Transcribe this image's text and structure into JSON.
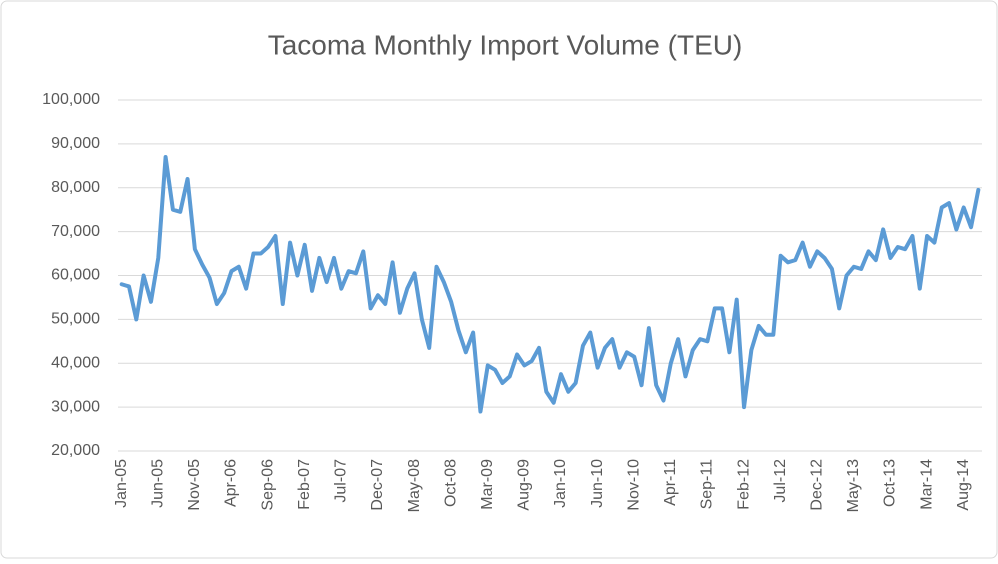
{
  "chart_data": {
    "type": "line",
    "title": "Tacoma Monthly Import Volume (TEU)",
    "categories": [
      "Jan-05",
      null,
      null,
      null,
      null,
      "Jun-05",
      null,
      null,
      null,
      null,
      "Nov-05",
      null,
      null,
      null,
      null,
      "Apr-06",
      null,
      null,
      null,
      null,
      "Sep-06",
      null,
      null,
      null,
      null,
      "Feb-07",
      null,
      null,
      null,
      null,
      "Jul-07",
      null,
      null,
      null,
      null,
      "Dec-07",
      null,
      null,
      null,
      null,
      "May-08",
      null,
      null,
      null,
      null,
      "Oct-08",
      null,
      null,
      null,
      null,
      "Mar-09",
      null,
      null,
      null,
      null,
      "Aug-09",
      null,
      null,
      null,
      null,
      "Jan-10",
      null,
      null,
      null,
      null,
      "Jun-10",
      null,
      null,
      null,
      null,
      "Nov-10",
      null,
      null,
      null,
      null,
      "Apr-11",
      null,
      null,
      null,
      null,
      "Sep-11",
      null,
      null,
      null,
      null,
      "Feb-12",
      null,
      null,
      null,
      null,
      "Jul-12",
      null,
      null,
      null,
      null,
      "Dec-12",
      null,
      null,
      null,
      null,
      "May-13",
      null,
      null,
      null,
      null,
      "Oct-13",
      null,
      null,
      null,
      null,
      "Mar-14",
      null,
      null,
      null,
      null,
      "Aug-14",
      null,
      null
    ],
    "values": [
      58000,
      57500,
      50000,
      60000,
      54000,
      64000,
      87000,
      75000,
      74500,
      82000,
      66000,
      62500,
      59500,
      53500,
      56000,
      61000,
      62000,
      57000,
      65000,
      65000,
      66500,
      69000,
      53500,
      67500,
      60000,
      67000,
      56500,
      64000,
      58500,
      64000,
      57000,
      61000,
      60500,
      65500,
      52500,
      55500,
      53500,
      63000,
      51500,
      57000,
      60500,
      50000,
      43500,
      62000,
      58500,
      54000,
      47500,
      42500,
      47000,
      29000,
      39500,
      38500,
      35500,
      37000,
      42000,
      39500,
      40500,
      43500,
      33500,
      31000,
      37500,
      33500,
      35500,
      44000,
      47000,
      39000,
      43500,
      45500,
      39000,
      42500,
      41500,
      35000,
      48000,
      35000,
      31500,
      40000,
      45500,
      37000,
      43000,
      45500,
      45000,
      52500,
      52500,
      42500,
      54500,
      30000,
      43000,
      48500,
      46500,
      46500,
      64500,
      63000,
      63500,
      67500,
      62000,
      65500,
      64000,
      61500,
      52500,
      60000,
      62000,
      61500,
      65500,
      63500,
      70500,
      64000,
      66500,
      66000,
      69000,
      57000,
      69000,
      67500,
      75500,
      76500,
      70500,
      75500,
      71000,
      79500
    ],
    "color": "#5b9bd5",
    "ylim": [
      20000,
      100000
    ],
    "yticks": [
      {
        "value": 20000,
        "label": "20,000"
      },
      {
        "value": 30000,
        "label": "30,000"
      },
      {
        "value": 40000,
        "label": "40,000"
      },
      {
        "value": 50000,
        "label": "50,000"
      },
      {
        "value": 60000,
        "label": "60,000"
      },
      {
        "value": 70000,
        "label": "70,000"
      },
      {
        "value": 80000,
        "label": "80,000"
      },
      {
        "value": 90000,
        "label": "90,000"
      },
      {
        "value": 100000,
        "label": "100,000"
      }
    ],
    "grid": true
  }
}
